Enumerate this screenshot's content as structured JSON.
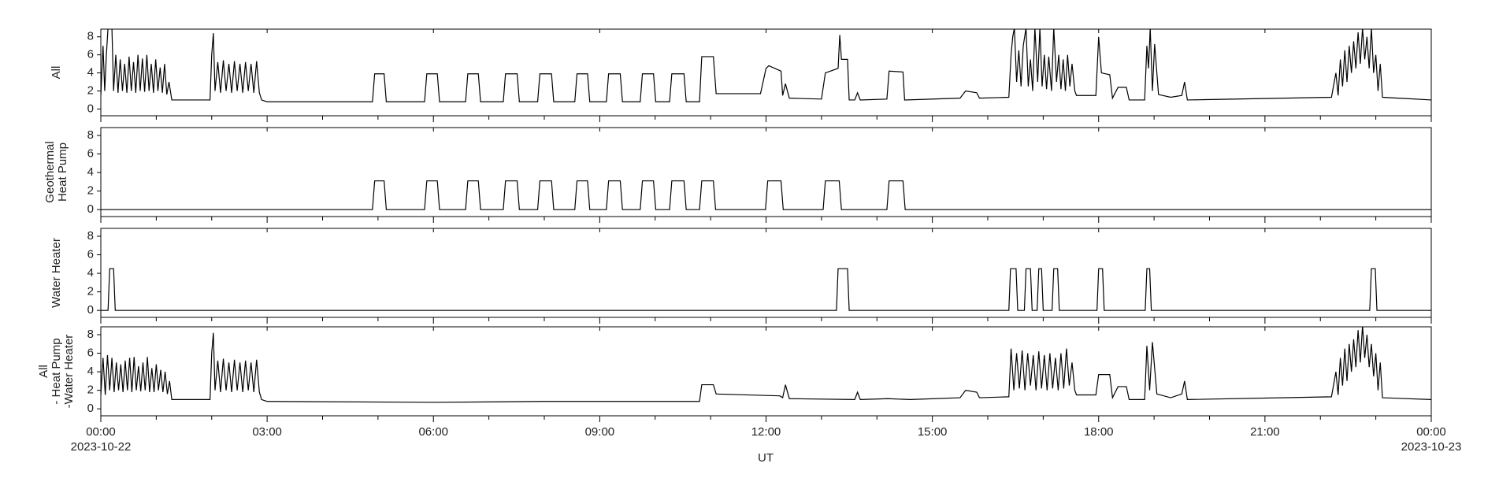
{
  "chart_data": [
    {
      "type": "line",
      "ylabel": [
        "All"
      ],
      "ylim": [
        -0.75,
        8.85
      ],
      "yticks": [
        0,
        2,
        4,
        6,
        8
      ],
      "color": "#000000",
      "x": [
        0,
        0.04,
        0.07,
        0.1,
        0.13,
        0.2,
        0.23,
        0.27,
        0.31,
        0.35,
        0.39,
        0.43,
        0.47,
        0.51,
        0.55,
        0.59,
        0.63,
        0.67,
        0.71,
        0.75,
        0.79,
        0.83,
        0.87,
        0.91,
        0.95,
        0.99,
        1.03,
        1.07,
        1.11,
        1.15,
        1.19,
        1.23,
        1.28,
        1.97,
        2.0,
        2.03,
        2.06,
        2.11,
        2.16,
        2.21,
        2.26,
        2.31,
        2.36,
        2.41,
        2.46,
        2.51,
        2.56,
        2.61,
        2.66,
        2.71,
        2.76,
        2.81,
        2.86,
        2.9,
        3.0,
        4.9,
        4.94,
        5.11,
        5.15,
        5.84,
        5.88,
        6.07,
        6.11,
        6.58,
        6.62,
        6.81,
        6.85,
        7.26,
        7.3,
        7.51,
        7.55,
        7.88,
        7.92,
        8.13,
        8.17,
        8.55,
        8.59,
        8.78,
        8.82,
        9.12,
        9.16,
        9.37,
        9.41,
        9.73,
        9.77,
        9.97,
        10.01,
        10.26,
        10.3,
        10.52,
        10.56,
        10.8,
        10.84,
        11.05,
        11.1,
        11.9,
        12.0,
        12.05,
        12.27,
        12.3,
        12.35,
        12.42,
        13.0,
        13.07,
        13.3,
        13.33,
        13.36,
        13.47,
        13.5,
        13.6,
        13.65,
        13.7,
        14.18,
        14.22,
        14.47,
        14.5,
        15.5,
        15.6,
        15.8,
        15.85,
        16.38,
        16.42,
        16.45,
        16.48,
        16.52,
        16.56,
        16.6,
        16.64,
        16.69,
        16.73,
        16.77,
        16.81,
        16.85,
        16.9,
        16.94,
        16.98,
        17.02,
        17.06,
        17.1,
        17.15,
        17.19,
        17.24,
        17.28,
        17.32,
        17.36,
        17.4,
        17.44,
        17.48,
        17.52,
        17.57,
        17.6,
        17.95,
        18.0,
        18.05,
        18.2,
        18.25,
        18.35,
        18.5,
        18.55,
        18.83,
        18.87,
        18.9,
        18.93,
        18.97,
        19.01,
        19.08,
        19.3,
        19.5,
        19.55,
        19.6,
        22.2,
        22.28,
        22.32,
        22.36,
        22.4,
        22.44,
        22.48,
        22.52,
        22.56,
        22.6,
        22.64,
        22.68,
        22.72,
        22.76,
        22.8,
        22.84,
        22.88,
        22.92,
        22.96,
        23.0,
        23.04,
        23.08,
        23.12,
        24
      ],
      "values": [
        1.5,
        7,
        2,
        6,
        9,
        9,
        2,
        6,
        1.8,
        5.5,
        2,
        5,
        1.8,
        5.8,
        2,
        5.2,
        1.8,
        6,
        2,
        5.6,
        1.9,
        6,
        2,
        5,
        1.8,
        5.5,
        2,
        4.6,
        1.8,
        5,
        1.6,
        3,
        1,
        1,
        6,
        8.4,
        2,
        5.2,
        1.8,
        5.4,
        2,
        5,
        1.8,
        5.3,
        2,
        5,
        1.8,
        5.2,
        2,
        5,
        1.8,
        5.3,
        1.8,
        1,
        0.8,
        0.8,
        3.9,
        3.9,
        0.8,
        0.8,
        3.9,
        3.9,
        0.8,
        0.8,
        3.9,
        3.9,
        0.8,
        0.8,
        3.9,
        3.9,
        0.8,
        0.8,
        3.9,
        3.9,
        0.8,
        0.8,
        3.9,
        3.9,
        0.8,
        0.8,
        3.9,
        3.9,
        0.8,
        0.8,
        3.9,
        3.9,
        0.8,
        0.8,
        3.9,
        3.9,
        0.8,
        0.8,
        5.8,
        5.8,
        1.7,
        1.7,
        4.5,
        4.8,
        4.2,
        1.5,
        2.8,
        1.2,
        1.1,
        4,
        4.5,
        8.2,
        5.5,
        5.5,
        1,
        1,
        1.8,
        1,
        1.1,
        4.2,
        4.1,
        1,
        1.2,
        2,
        1.8,
        1.2,
        1.3,
        6,
        8,
        9,
        3,
        6.5,
        2.5,
        7,
        9,
        2.5,
        5.5,
        2,
        9,
        3,
        9,
        2.5,
        6,
        2.2,
        5.8,
        2,
        9,
        3,
        6,
        2.2,
        5.5,
        2,
        6,
        2.5,
        5,
        2,
        1.5,
        1.5,
        8,
        4,
        3.8,
        1.2,
        2.4,
        2.4,
        1,
        1,
        7,
        4.5,
        9,
        2,
        7.2,
        1.6,
        1.3,
        1.5,
        3,
        1,
        1.3,
        4,
        1.5,
        5.5,
        2.5,
        6.5,
        3,
        7,
        4,
        7.5,
        4.5,
        8.5,
        5,
        9,
        5.5,
        8,
        4.5,
        9,
        4,
        6,
        2,
        5,
        1.3,
        1
      ]
    },
    {
      "type": "line",
      "ylabel": [
        "Geothermal",
        "Heat Pump"
      ],
      "ylim": [
        -0.75,
        8.85
      ],
      "yticks": [
        0,
        2,
        4,
        6,
        8
      ],
      "color": "#000000",
      "x": [
        0,
        4.9,
        4.94,
        5.11,
        5.15,
        5.84,
        5.88,
        6.07,
        6.11,
        6.58,
        6.62,
        6.81,
        6.85,
        7.26,
        7.3,
        7.51,
        7.55,
        7.88,
        7.92,
        8.13,
        8.17,
        8.55,
        8.59,
        8.78,
        8.82,
        9.12,
        9.16,
        9.37,
        9.41,
        9.73,
        9.77,
        9.97,
        10.01,
        10.26,
        10.3,
        10.52,
        10.56,
        10.8,
        10.84,
        11.05,
        11.09,
        11.99,
        12.03,
        12.27,
        12.31,
        13.03,
        13.07,
        13.32,
        13.36,
        14.18,
        14.22,
        14.47,
        14.51,
        24
      ],
      "values": [
        0,
        0,
        3.1,
        3.1,
        0,
        0,
        3.1,
        3.1,
        0,
        0,
        3.1,
        3.1,
        0,
        0,
        3.1,
        3.1,
        0,
        0,
        3.1,
        3.1,
        0,
        0,
        3.1,
        3.1,
        0,
        0,
        3.1,
        3.1,
        0,
        0,
        3.1,
        3.1,
        0,
        0,
        3.1,
        3.1,
        0,
        0,
        3.1,
        3.1,
        0,
        0,
        3.1,
        3.1,
        0,
        0,
        3.1,
        3.1,
        0,
        0,
        3.1,
        3.1,
        0,
        0
      ]
    },
    {
      "type": "line",
      "ylabel": [
        "Water Heater"
      ],
      "ylim": [
        -0.75,
        8.85
      ],
      "yticks": [
        0,
        2,
        4,
        6,
        8
      ],
      "color": "#000000",
      "x": [
        0,
        0.13,
        0.16,
        0.23,
        0.26,
        13.27,
        13.3,
        13.47,
        13.5,
        16.38,
        16.41,
        16.51,
        16.54,
        16.66,
        16.69,
        16.77,
        16.8,
        16.89,
        16.92,
        16.97,
        17.0,
        17.16,
        17.19,
        17.26,
        17.29,
        17.97,
        18.0,
        18.07,
        18.1,
        18.84,
        18.87,
        18.92,
        18.95,
        22.89,
        22.92,
        22.99,
        23.02,
        24
      ],
      "values": [
        0,
        0,
        4.5,
        4.5,
        0,
        0,
        4.5,
        4.5,
        0,
        0,
        4.5,
        4.5,
        0,
        0,
        4.5,
        4.5,
        0,
        0,
        4.5,
        4.5,
        0,
        0,
        4.5,
        4.5,
        0,
        0,
        4.5,
        4.5,
        0,
        0,
        4.5,
        4.5,
        0,
        0,
        4.5,
        4.5,
        0,
        0
      ]
    },
    {
      "type": "line",
      "ylabel": [
        "All",
        "- Heat Pump",
        "-Water Heater"
      ],
      "ylim": [
        -0.75,
        8.85
      ],
      "yticks": [
        0,
        2,
        4,
        6,
        8
      ],
      "color": "#000000",
      "x": [
        0,
        0.04,
        0.08,
        0.12,
        0.16,
        0.2,
        0.24,
        0.28,
        0.32,
        0.36,
        0.4,
        0.44,
        0.48,
        0.52,
        0.56,
        0.6,
        0.64,
        0.68,
        0.72,
        0.76,
        0.8,
        0.84,
        0.88,
        0.92,
        0.96,
        1.0,
        1.04,
        1.08,
        1.12,
        1.16,
        1.2,
        1.24,
        1.28,
        1.97,
        2.0,
        2.03,
        2.06,
        2.11,
        2.16,
        2.21,
        2.26,
        2.31,
        2.36,
        2.41,
        2.46,
        2.51,
        2.56,
        2.61,
        2.66,
        2.71,
        2.76,
        2.81,
        2.86,
        2.9,
        3.0,
        6.0,
        8.0,
        10.8,
        10.84,
        11.05,
        11.1,
        12.25,
        12.3,
        12.35,
        12.42,
        13.6,
        13.65,
        13.7,
        14.2,
        14.6,
        15.5,
        15.6,
        15.8,
        15.85,
        16.38,
        16.42,
        16.47,
        16.52,
        16.57,
        16.62,
        16.67,
        16.72,
        16.77,
        16.82,
        16.87,
        16.92,
        16.97,
        17.02,
        17.07,
        17.12,
        17.17,
        17.22,
        17.27,
        17.32,
        17.37,
        17.42,
        17.47,
        17.52,
        17.57,
        17.6,
        17.95,
        18.0,
        18.2,
        18.25,
        18.35,
        18.5,
        18.55,
        18.83,
        18.87,
        18.92,
        18.97,
        19.05,
        19.3,
        19.5,
        19.55,
        19.6,
        22.2,
        22.28,
        22.32,
        22.36,
        22.4,
        22.44,
        22.48,
        22.52,
        22.56,
        22.6,
        22.64,
        22.68,
        22.72,
        22.76,
        22.8,
        22.84,
        22.88,
        22.92,
        22.96,
        23.0,
        23.04,
        23.08,
        23.12,
        24
      ],
      "values": [
        1.5,
        5.5,
        1.5,
        5.8,
        2,
        5.5,
        1.8,
        5,
        2,
        4.8,
        1.8,
        5.2,
        2,
        5.5,
        1.8,
        5.6,
        2,
        4.6,
        1.9,
        5,
        2,
        5.6,
        1.8,
        4.4,
        1.8,
        4.8,
        2,
        4.2,
        1.8,
        4,
        1.6,
        3,
        1,
        1,
        6,
        8.2,
        2,
        5.2,
        1.8,
        5.4,
        2,
        5,
        1.8,
        5.3,
        2,
        5,
        1.8,
        5.2,
        2,
        5,
        1.8,
        5.3,
        1.8,
        1,
        0.8,
        0.7,
        0.8,
        0.8,
        2.6,
        2.6,
        1.6,
        1.4,
        1.2,
        2.6,
        1.1,
        1,
        1.8,
        1,
        1.1,
        1,
        1.2,
        2,
        1.8,
        1.2,
        1.3,
        6.5,
        2,
        6,
        2.2,
        6.3,
        2,
        6,
        2.5,
        5.8,
        2,
        6.2,
        2.2,
        5.8,
        2,
        6,
        2.2,
        5.5,
        2,
        6,
        2.2,
        6.5,
        2.5,
        5,
        2,
        1.5,
        1.5,
        3.7,
        3.7,
        1.2,
        2.4,
        2.4,
        1,
        1,
        6.8,
        2,
        7.2,
        1.6,
        1.2,
        1.6,
        3,
        1,
        1.3,
        4,
        1.5,
        5.5,
        2.5,
        6.5,
        3,
        7,
        4,
        7.5,
        4.5,
        8.5,
        5,
        9,
        5.5,
        8,
        4.5,
        7,
        3.5,
        6,
        2,
        5,
        1.2,
        1
      ]
    }
  ],
  "xlabel": "UT",
  "xlim": [
    0,
    24
  ],
  "xticks": [
    {
      "value": 0,
      "label": "00:00"
    },
    {
      "value": 3,
      "label": "03:00"
    },
    {
      "value": 6,
      "label": "06:00"
    },
    {
      "value": 9,
      "label": "09:00"
    },
    {
      "value": 12,
      "label": "12:00"
    },
    {
      "value": 15,
      "label": "15:00"
    },
    {
      "value": 18,
      "label": "18:00"
    },
    {
      "value": 21,
      "label": "21:00"
    },
    {
      "value": 24,
      "label": "00:00"
    }
  ],
  "xdates": [
    {
      "value": 0,
      "label": "2023-10-22"
    },
    {
      "value": 24,
      "label": "2023-10-23"
    }
  ],
  "xminorticks": [
    1,
    2,
    4,
    5,
    7,
    8,
    10,
    11,
    13,
    14,
    16,
    17,
    19,
    20,
    22,
    23
  ]
}
